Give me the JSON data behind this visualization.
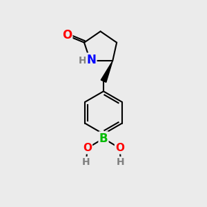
{
  "background_color": "#ebebeb",
  "bond_color": "#000000",
  "bond_width": 1.5,
  "atom_colors": {
    "O": "#ff0000",
    "N": "#0000ff",
    "B": "#00bb00",
    "C": "#000000",
    "H": "#808080"
  },
  "font_size_atoms": 11,
  "font_size_h": 10
}
